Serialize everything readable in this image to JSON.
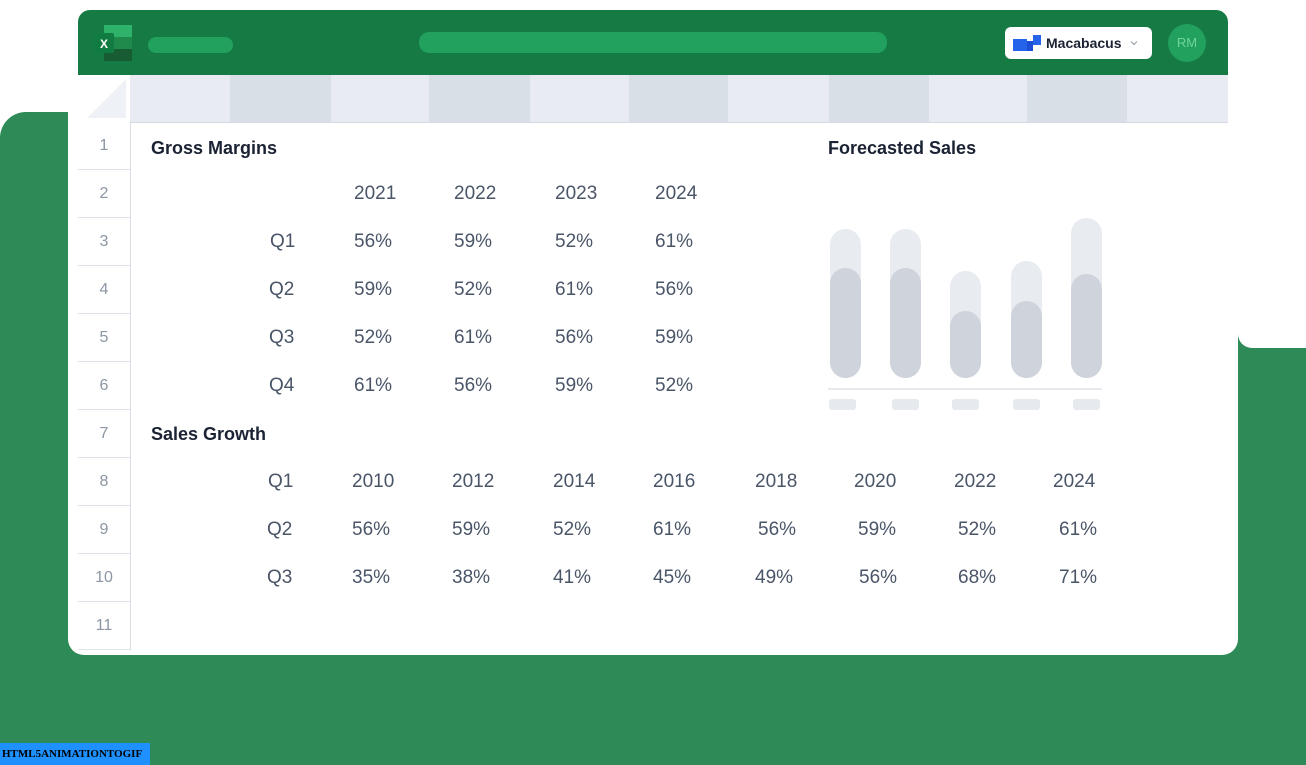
{
  "addin": {
    "label": "Macabacus"
  },
  "user": {
    "initials": "RM"
  },
  "row_numbers": [
    "1",
    "2",
    "3",
    "4",
    "5",
    "6",
    "7",
    "8",
    "9",
    "10",
    "11"
  ],
  "gross_margins": {
    "title": "Gross Margins",
    "years": [
      "2021",
      "2022",
      "2023",
      "2024"
    ],
    "rows": [
      {
        "label": "Q1",
        "values": [
          "56%",
          "59%",
          "52%",
          "61%"
        ]
      },
      {
        "label": "Q2",
        "values": [
          "59%",
          "52%",
          "61%",
          "56%"
        ]
      },
      {
        "label": "Q3",
        "values": [
          "52%",
          "61%",
          "56%",
          "59%"
        ]
      },
      {
        "label": "Q4",
        "values": [
          "61%",
          "56%",
          "59%",
          "52%"
        ]
      }
    ]
  },
  "sales_growth": {
    "title": "Sales Growth",
    "rows": [
      {
        "label": "Q1",
        "values": [
          "2010",
          "2012",
          "2014",
          "2016",
          "2018",
          "2020",
          "2022",
          "2024"
        ]
      },
      {
        "label": "Q2",
        "values": [
          "56%",
          "59%",
          "52%",
          "61%",
          "56%",
          "59%",
          "52%",
          "61%"
        ]
      },
      {
        "label": "Q3",
        "values": [
          "35%",
          "38%",
          "41%",
          "45%",
          "49%",
          "56%",
          "68%",
          "71%"
        ]
      }
    ]
  },
  "chart_data": {
    "type": "bar",
    "title": "Forecasted Sales",
    "categories": [
      "",
      "",
      "",
      "",
      ""
    ],
    "series": [
      {
        "values": [
          0.93,
          0.93,
          0.67,
          0.73,
          1.0
        ]
      },
      {
        "values": [
          0.69,
          0.69,
          0.42,
          0.48,
          0.65
        ]
      }
    ],
    "ylim": [
      0,
      1
    ]
  },
  "watermark": "HTML5ANIMATIONTOGIF",
  "colors": {
    "excel_green": "#157a43",
    "background_green": "#2e8b57",
    "addin_blue": "#2563eb"
  }
}
